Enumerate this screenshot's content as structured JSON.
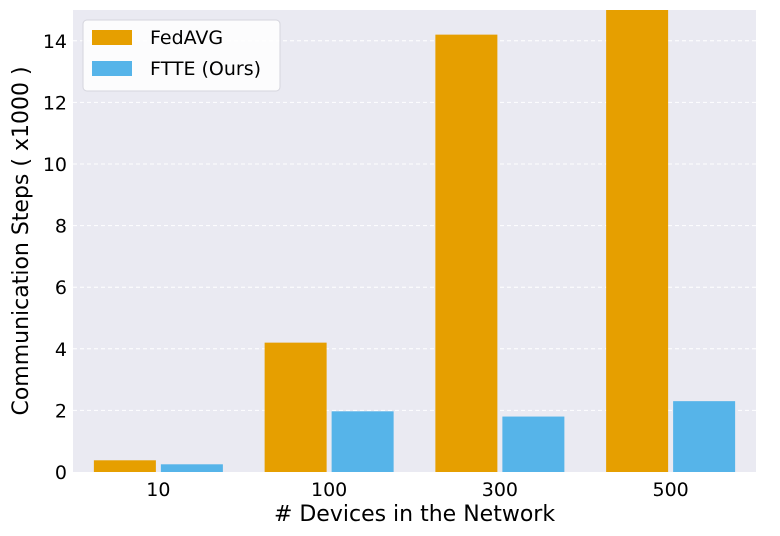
{
  "chart_data": {
    "type": "bar",
    "title": "",
    "xlabel": "# Devices in the Network",
    "ylabel": "Communication Steps ( x1000 )",
    "categories": [
      "10",
      "100",
      "300",
      "500"
    ],
    "series": [
      {
        "name": "FedAVG",
        "color": "#E69F00",
        "values": [
          0.38,
          4.2,
          14.2,
          15.5
        ]
      },
      {
        "name": "FTTE (Ours)",
        "color": "#56B4E9",
        "values": [
          0.25,
          1.97,
          1.8,
          2.3
        ]
      }
    ],
    "ylim": [
      0,
      15
    ],
    "yticks": [
      "0",
      "2",
      "4",
      "6",
      "8",
      "10",
      "12",
      "14"
    ],
    "grid": true,
    "legend_position": "top-left",
    "background": "#EAEAF2"
  }
}
